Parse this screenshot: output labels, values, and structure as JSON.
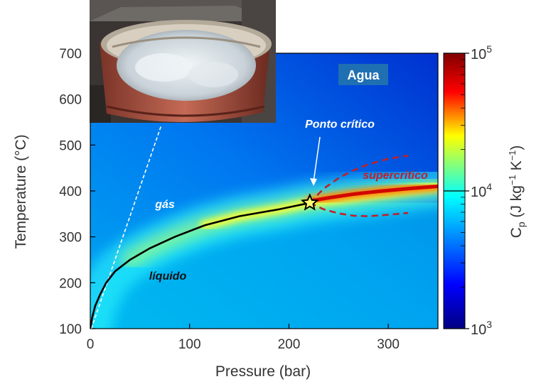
{
  "chart_data": {
    "type": "heatmap",
    "title": "Agua",
    "xlabel": "Pressure (bar)",
    "ylabel": "Temperature (°C)",
    "xlim": [
      0,
      350
    ],
    "ylim": [
      100,
      700
    ],
    "x_ticks": [
      0,
      100,
      200,
      300
    ],
    "y_ticks": [
      100,
      200,
      300,
      400,
      500,
      600,
      700
    ],
    "grid": false,
    "colorbar": {
      "label": "Cp (J kg−1 K−1)",
      "scale": "log",
      "range": [
        1000,
        100000
      ],
      "ticks": [
        {
          "value": 1000,
          "base": "10",
          "exp": "3"
        },
        {
          "value": 10000,
          "base": "10",
          "exp": "4"
        },
        {
          "value": 100000,
          "base": "10",
          "exp": "5"
        }
      ],
      "colors": [
        "#000080",
        "#0000ff",
        "#00ffff",
        "#ffff00",
        "#ff0000",
        "#800000"
      ]
    },
    "series": [
      {
        "kind": "boiling-curve",
        "color": "#000000",
        "points": [
          [
            0.01,
            100
          ],
          [
            2,
            125
          ],
          [
            5,
            150
          ],
          [
            10,
            175
          ],
          [
            16,
            200
          ],
          [
            25,
            225
          ],
          [
            40,
            250
          ],
          [
            60,
            275
          ],
          [
            85,
            300
          ],
          [
            115,
            325
          ],
          [
            150,
            345
          ],
          [
            190,
            360
          ],
          [
            221,
            374
          ]
        ]
      },
      {
        "kind": "dashed-white-line",
        "color": "#ffffff",
        "points": [
          [
            1,
            100
          ],
          [
            71,
            540
          ]
        ]
      },
      {
        "kind": "dashed-red-boundary-upper",
        "color": "#c0202a",
        "points": [
          [
            221,
            374
          ],
          [
            235,
            405
          ],
          [
            250,
            428
          ],
          [
            265,
            445
          ],
          [
            280,
            458
          ],
          [
            300,
            470
          ],
          [
            320,
            477
          ]
        ]
      },
      {
        "kind": "dashed-red-boundary-lower",
        "color": "#c0202a",
        "points": [
          [
            221,
            374
          ],
          [
            235,
            360
          ],
          [
            250,
            351
          ],
          [
            265,
            346
          ],
          [
            280,
            345
          ],
          [
            300,
            348
          ],
          [
            320,
            352
          ]
        ]
      }
    ],
    "critical_point": {
      "pressure": 221,
      "temperature": 374,
      "marker": "star"
    },
    "annotations": [
      {
        "key": "critico",
        "text": "Ponto crítico",
        "color": "#ffffff"
      },
      {
        "key": "super",
        "text": "supercritico",
        "color": "#c0202a"
      },
      {
        "key": "gas",
        "text": "gás",
        "color": "#ffffff"
      },
      {
        "key": "liquido",
        "text": "líquido",
        "color": "#111111"
      }
    ],
    "inset_image": "photo of boiling water in a pot"
  }
}
